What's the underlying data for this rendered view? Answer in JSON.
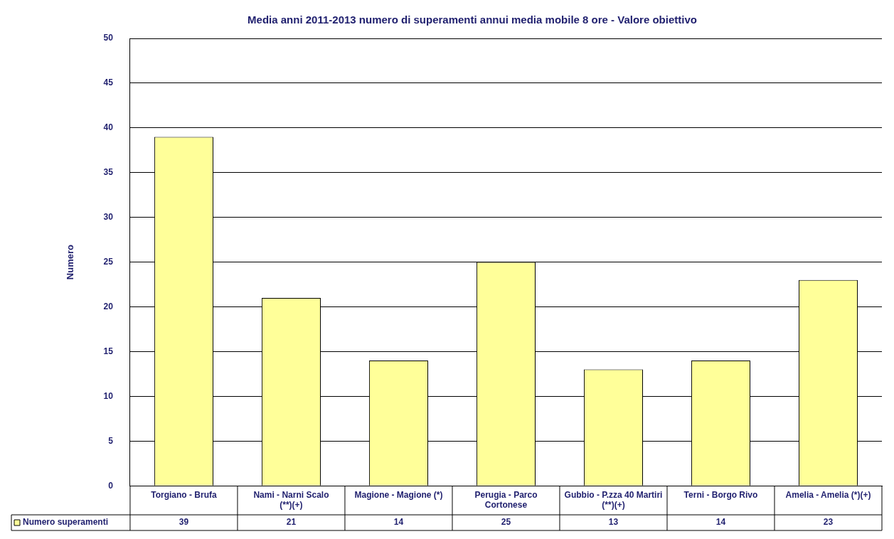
{
  "chart_data": {
    "type": "bar",
    "title": "Media anni 2011-2013 numero di superamenti annui media mobile 8 ore - Valore obiettivo",
    "ylabel": "Numero",
    "categories": [
      "Torgiano - Brufa",
      "Nami - Narni Scalo (**)(+)",
      "Magione - Magione (*)",
      "Perugia - Parco Cortonese",
      "Gubbio - P.zza 40 Martiri (**)(+)",
      "Terni - Borgo Rivo",
      "Amelia - Amelia (*)(+)"
    ],
    "series": [
      {
        "name": "Numero superamenti",
        "color": "#ffff99",
        "values": [
          39,
          21,
          14,
          25,
          13,
          14,
          23
        ]
      }
    ],
    "ylim": [
      0,
      50
    ],
    "yticks": [
      0,
      5,
      10,
      15,
      20,
      25,
      30,
      35,
      40,
      45,
      50
    ],
    "grid": "y",
    "legend": "bottom",
    "data_labels": true
  }
}
